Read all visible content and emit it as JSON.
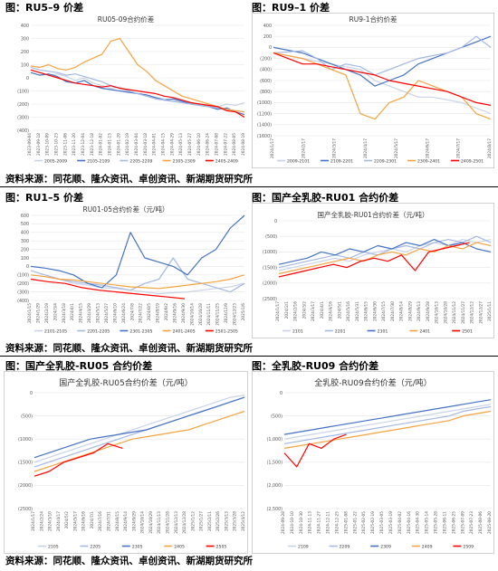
{
  "captions": {
    "row1_left": "图：RU5–9 价差",
    "row1_right": "图：RU9–1 价差",
    "row2_left": "图：RU1–5 价差",
    "row2_right": "图：国产全乳胶-RU01 合约价差",
    "row3_left": "图：国产全乳胶-RU05 合约价差",
    "row3_right": "图：全乳胶-RU09 合约价差"
  },
  "sources": {
    "src1": "资料来源：同花顺、隆众资讯、卓创资讯、新湖期货研究所",
    "src2": "资料来源：同花顺、隆众资讯、卓创资讯、新湖期货研究所",
    "src3": "资料来源：同花顺、隆众资讯、卓创资讯、新湖期货研究所"
  },
  "chart_data": [
    {
      "id": "c1",
      "type": "line",
      "title": "RU05-09合约价差",
      "ylim": [
        -400,
        400
      ],
      "yticks": [
        "400",
        "300",
        "200",
        "100",
        "0",
        "(100)",
        "(200)",
        "(300)",
        "(400)"
      ],
      "xticks": [
        "2023-09-04",
        "2023-09-18",
        "2023-10-09",
        "2023-10-23",
        "2023-11-06",
        "2023-11-20",
        "2023-12-04",
        "2023-12-18",
        "2024-01-02",
        "2024-01-15",
        "2024-01-29",
        "2024-02-19",
        "2024-03-04",
        "2024-03-18",
        "2024-04-01",
        "2024-04-15",
        "2024-04-29",
        "2024-05-13",
        "2024-05-27",
        "2024-06-10",
        "2024-06-24",
        "2024-07-08",
        "2024-07-22",
        "2024-08-05",
        "2024-08-19"
      ],
      "grid": true,
      "legend_position": "bottom",
      "series": [
        {
          "name": "2005-2009",
          "color": "#c9d3e6",
          "values": [
            60,
            40,
            20,
            30,
            10,
            -20,
            0,
            -40,
            -60,
            -80,
            -70,
            -100,
            -120,
            -140,
            -150,
            -160,
            -170,
            -180,
            -190,
            -200,
            -210,
            -220,
            -200,
            -210,
            -190
          ]
        },
        {
          "name": "2105-2109",
          "color": "#4472c4",
          "values": [
            40,
            20,
            30,
            10,
            -30,
            -40,
            -20,
            -60,
            -80,
            -90,
            -100,
            -110,
            -120,
            -130,
            -150,
            -170,
            -160,
            -180,
            -200,
            -210,
            -220,
            -240,
            -230,
            -260,
            -280
          ]
        },
        {
          "name": "2205-2209",
          "color": "#a5b8e0",
          "values": [
            80,
            60,
            50,
            40,
            20,
            30,
            10,
            -10,
            -30,
            -60,
            -80,
            -100,
            -120,
            -140,
            -160,
            -170,
            -180,
            -190,
            -200,
            -210,
            -220,
            -230,
            -240,
            -250,
            -260
          ]
        },
        {
          "name": "2305-2309",
          "color": "#f4a340",
          "values": [
            90,
            80,
            100,
            70,
            60,
            80,
            120,
            150,
            180,
            280,
            300,
            200,
            100,
            50,
            -20,
            -60,
            -100,
            -140,
            -160,
            -180,
            -200,
            -220,
            -240,
            -250,
            -260
          ]
        },
        {
          "name": "2405-2409",
          "color": "#ff0000",
          "values": [
            60,
            40,
            20,
            0,
            -20,
            -40,
            -50,
            -60,
            -70,
            -60,
            -80,
            -90,
            -100,
            -110,
            -120,
            -140,
            -150,
            -170,
            -190,
            -200,
            -210,
            -220,
            -250,
            -260,
            -300
          ]
        }
      ]
    },
    {
      "id": "c2",
      "type": "line",
      "title": "RU9-1合约价差",
      "ylim": [
        -1600,
        400
      ],
      "yticks": [
        "400",
        "200",
        "0",
        "(200)",
        "(400)",
        "(600)",
        "(800)",
        "(1000)",
        "(1200)",
        "(1400)",
        "(1600)"
      ],
      "xticks": [
        "2024/1/17",
        "2024/2/17",
        "2024/3/17",
        "2024/4/17",
        "2024/5/17",
        "2024/6/17",
        "2024/7/17",
        "2024/8/17"
      ],
      "grid": true,
      "legend_position": "bottom",
      "series": [
        {
          "name": "2009-2101",
          "color": "#c9d3e6",
          "values": [
            -100,
            -150,
            -200,
            -250,
            -300,
            -350,
            -400,
            -600,
            -700,
            -800,
            -900,
            -900,
            -950,
            -1000,
            -1100,
            -1200
          ]
        },
        {
          "name": "2109-2201",
          "color": "#4472c4",
          "values": [
            0,
            -50,
            -100,
            -200,
            -300,
            -400,
            -500,
            -700,
            -600,
            -500,
            -300,
            -200,
            -100,
            0,
            100,
            200
          ]
        },
        {
          "name": "2209-2301",
          "color": "#a5b8e0",
          "values": [
            -100,
            -80,
            -60,
            -200,
            -400,
            -300,
            -350,
            -500,
            -400,
            -300,
            -200,
            -150,
            -100,
            0,
            200,
            0
          ]
        },
        {
          "name": "2309-2401",
          "color": "#f4a340",
          "values": [
            -100,
            -150,
            -200,
            -300,
            -400,
            -500,
            -1200,
            -1300,
            -1000,
            -900,
            -600,
            -700,
            -800,
            -900,
            -1200,
            -1300
          ]
        },
        {
          "name": "2409-2501",
          "color": "#ff0000",
          "values": [
            -100,
            -200,
            -300,
            -300,
            -350,
            -400,
            -450,
            -500,
            -600,
            -650,
            -700,
            -750,
            -800,
            -900,
            -1000,
            -1050
          ]
        }
      ]
    },
    {
      "id": "c3",
      "type": "line",
      "title": "RU01-05合约价差（元/吨）",
      "ylim": [
        -400,
        600
      ],
      "yticks": [
        "600",
        "500",
        "400",
        "300",
        "200",
        "100",
        "0",
        "(100)",
        "(200)",
        "(300)",
        "(400)"
      ],
      "xticks": [
        "2024/1/15",
        "2024/1/29",
        "2024/2/19",
        "2024/3/4",
        "2024/3/18",
        "2024/4/1",
        "2024/4/15",
        "2024/4/29",
        "2024/5/13",
        "2024/5/27",
        "2024/6/10",
        "2024/6/24",
        "2024/7/8",
        "2024/7/22",
        "2024/8/5",
        "2024/8/19",
        "2024/9/2",
        "2024/9/16",
        "2024/9/30",
        "2024/10/14",
        "2024/10/28",
        "2024/11/11",
        "2024/11/25",
        "2024/12/9",
        "2024/12/23",
        "2025/1/6"
      ],
      "grid": true,
      "legend_position": "bottom",
      "series": [
        {
          "name": "2101-2105",
          "color": "#c9d3e6",
          "values": [
            -100,
            -120,
            -150,
            -200,
            -220,
            -250,
            -260,
            -280,
            -300,
            -320,
            -310,
            -300,
            -280,
            -260,
            -240,
            -200
          ]
        },
        {
          "name": "2201-2205",
          "color": "#a5b8e0",
          "values": [
            -50,
            -100,
            -150,
            -180,
            -200,
            -220,
            -250,
            -280,
            -200,
            -150,
            100,
            -150,
            -200,
            -250,
            -300,
            -200
          ]
        },
        {
          "name": "2301-2305",
          "color": "#4472c4",
          "values": [
            0,
            -20,
            -50,
            -100,
            -200,
            -250,
            -100,
            400,
            100,
            50,
            0,
            -100,
            100,
            200,
            450,
            600
          ]
        },
        {
          "name": "2401-2405",
          "color": "#f4a340",
          "values": [
            -100,
            -120,
            -150,
            -160,
            -180,
            -200,
            -220,
            -240,
            -250,
            -260,
            -240,
            -220,
            -200,
            -180,
            -150,
            -100
          ]
        },
        {
          "name": "2501-2505",
          "color": "#ff0000",
          "values": [
            -150,
            -180,
            -200,
            -250,
            -280,
            -300,
            -320,
            -340,
            -360,
            -380
          ]
        }
      ]
    },
    {
      "id": "c4",
      "type": "line",
      "title": "国产全乳胶-RU01合约价差（元/吨）",
      "ylim": [
        -2500,
        0
      ],
      "yticks": [
        "0",
        "(500)",
        "(1000)",
        "(1500)",
        "(2000)",
        "(2500)"
      ],
      "xticks": [
        "2024/1/17",
        "2024/2/1",
        "2024/2/16",
        "2024/3/2",
        "2024/3/17",
        "2024/4/1",
        "2024/4/16",
        "2024/5/1",
        "2024/5/16",
        "2024/5/31",
        "2024/6/15",
        "2024/6/30",
        "2024/7/15",
        "2024/7/30",
        "2024/8/14",
        "2024/8/29",
        "2024/9/13",
        "2024/9/28",
        "2024/10/13",
        "2024/10/28",
        "2024/11/12",
        "2024/11/27",
        "2024/12/12",
        "2024/12/27",
        "2025/1/11"
      ],
      "grid": true,
      "legend_position": "bottom",
      "series": [
        {
          "name": "2101",
          "color": "#c9d3e6",
          "values": [
            -1600,
            -1500,
            -1400,
            -1300,
            -1200,
            -1300,
            -1100,
            -1000,
            -900,
            -1000,
            -800,
            -700,
            -800,
            -600,
            -700,
            -600
          ]
        },
        {
          "name": "2201",
          "color": "#a5b8e0",
          "values": [
            -1500,
            -1400,
            -1300,
            -1200,
            -1100,
            -1200,
            -1000,
            -1100,
            -900,
            -800,
            -900,
            -700,
            -600,
            -700,
            -500,
            -700
          ]
        },
        {
          "name": "2301",
          "color": "#4472c4",
          "values": [
            -1400,
            -1300,
            -1200,
            -1000,
            -1100,
            -900,
            -1000,
            -800,
            -900,
            -700,
            -800,
            -600,
            -800,
            -700,
            -900,
            -1000
          ]
        },
        {
          "name": "2401",
          "color": "#f4a340",
          "values": [
            -1700,
            -1600,
            -1500,
            -1400,
            -1300,
            -1200,
            -1300,
            -1100,
            -1000,
            -1100,
            -900,
            -1000,
            -800,
            -900,
            -700,
            -800
          ]
        },
        {
          "name": "2501",
          "color": "#ff0000",
          "values": [
            -1800,
            -1700,
            -1600,
            -1500,
            -1400,
            -1500,
            -1300,
            -1200,
            -1300,
            -1100,
            -1600,
            -1000,
            -900,
            -800,
            -700
          ]
        }
      ]
    },
    {
      "id": "c5",
      "type": "line",
      "title": "国产全乳胶-RU05合约价差（元/吨）",
      "ylim": [
        -2500,
        0
      ],
      "yticks": [
        "0",
        "(500)",
        "(1000)",
        "(1500)",
        "(2000)",
        "(2500)"
      ],
      "xticks": [
        "2024/1/17",
        "2024/2/24",
        "2024/3/10",
        "2024/4/17",
        "2024/5/2",
        "2024/5/17",
        "2024/6/16",
        "2024/7/1",
        "2024/7/16",
        "2024/7/31",
        "2024/8/15",
        "2024/9/14",
        "2024/9/29",
        "2024/10/14",
        "2024/10/29",
        "2024/11/13",
        "2024/11/28",
        "2024/12/13",
        "2024/12/28",
        "2025/1/12",
        "2025/1/27",
        "2025/2/11",
        "2025/2/26",
        "2025/3/13",
        "2025/3/28",
        "2025/4/12"
      ],
      "grid": true,
      "legend_position": "bottom",
      "series": [
        {
          "name": "2105",
          "color": "#c9d3e6",
          "values": [
            -1500,
            -1400,
            -1300,
            -1200,
            -1100,
            -1000,
            -900,
            -800,
            -700,
            -600,
            -500,
            -400,
            -300,
            -200,
            -100,
            -50
          ]
        },
        {
          "name": "2205",
          "color": "#a5b8e0",
          "values": [
            -1600,
            -1500,
            -1400,
            -1300,
            -1200,
            -1100,
            -1000,
            -900,
            -800,
            -700,
            -600,
            -500,
            -400,
            -300,
            -200,
            -100
          ]
        },
        {
          "name": "2305",
          "color": "#4472c4",
          "values": [
            -1400,
            -1300,
            -1200,
            -1100,
            -1000,
            -950,
            -900,
            -850,
            -800,
            -700,
            -600,
            -500,
            -400,
            -300,
            -200,
            -100
          ]
        },
        {
          "name": "2405",
          "color": "#f4a340",
          "values": [
            -1700,
            -1600,
            -1500,
            -1400,
            -1300,
            -1200,
            -1100,
            -1000,
            -950,
            -900,
            -850,
            -800,
            -700,
            -600,
            -500,
            -400
          ]
        },
        {
          "name": "2505",
          "color": "#ff0000",
          "values": [
            -1800,
            -1700,
            -1500,
            -1400,
            -1300,
            -1100,
            -1200
          ]
        }
      ]
    },
    {
      "id": "c6",
      "type": "line",
      "title": "全乳胶-RU09合约价差（元/吨）",
      "ylim": [
        -2500,
        0
      ],
      "yticks": [
        "0",
        "(500)",
        "(1,000)",
        "(1,500)",
        "(2,000)",
        "(2,500)"
      ],
      "xticks": [
        "2024-09-28",
        "2024-10-10",
        "2024-10-30",
        "2024-11-13",
        "2024-11-27",
        "2024-12-11",
        "2024-12-25",
        "2025-01-08",
        "2025-01-22",
        "2025-02-05",
        "2025-02-19",
        "2025-03-05",
        "2025-03-19",
        "2025-04-02",
        "2025-04-16",
        "2025-04-30",
        "2025-05-14",
        "2025-05-28",
        "2025-06-11",
        "2025-06-25",
        "2025-07-09",
        "2025-07-23",
        "2025-08-06",
        "2025-08-20"
      ],
      "grid": true,
      "legend_position": "bottom",
      "series": [
        {
          "name": "2109",
          "color": "#c9d3e6",
          "values": [
            -1000,
            -950,
            -900,
            -850,
            -800,
            -750,
            -700,
            -650,
            -600,
            -550,
            -500,
            -450,
            -400,
            -350,
            -300,
            -250
          ]
        },
        {
          "name": "2209",
          "color": "#a5b8e0",
          "values": [
            -1100,
            -1050,
            -1000,
            -950,
            -900,
            -850,
            -800,
            -750,
            -700,
            -650,
            -600,
            -550,
            -500,
            -400,
            -350,
            -300
          ]
        },
        {
          "name": "2309",
          "color": "#4472c4",
          "values": [
            -900,
            -850,
            -800,
            -750,
            -700,
            -650,
            -600,
            -550,
            -500,
            -450,
            -400,
            -350,
            -300,
            -250,
            -200,
            -150
          ]
        },
        {
          "name": "2409",
          "color": "#f4a340",
          "values": [
            -1200,
            -1150,
            -1100,
            -1050,
            -1000,
            -950,
            -900,
            -850,
            -800,
            -750,
            -700,
            -650,
            -600,
            -500,
            -450,
            -400
          ]
        },
        {
          "name": "2509",
          "color": "#ff0000",
          "values": [
            -1300,
            -1600,
            -1100,
            -1200,
            -1000,
            -900
          ]
        }
      ]
    }
  ]
}
